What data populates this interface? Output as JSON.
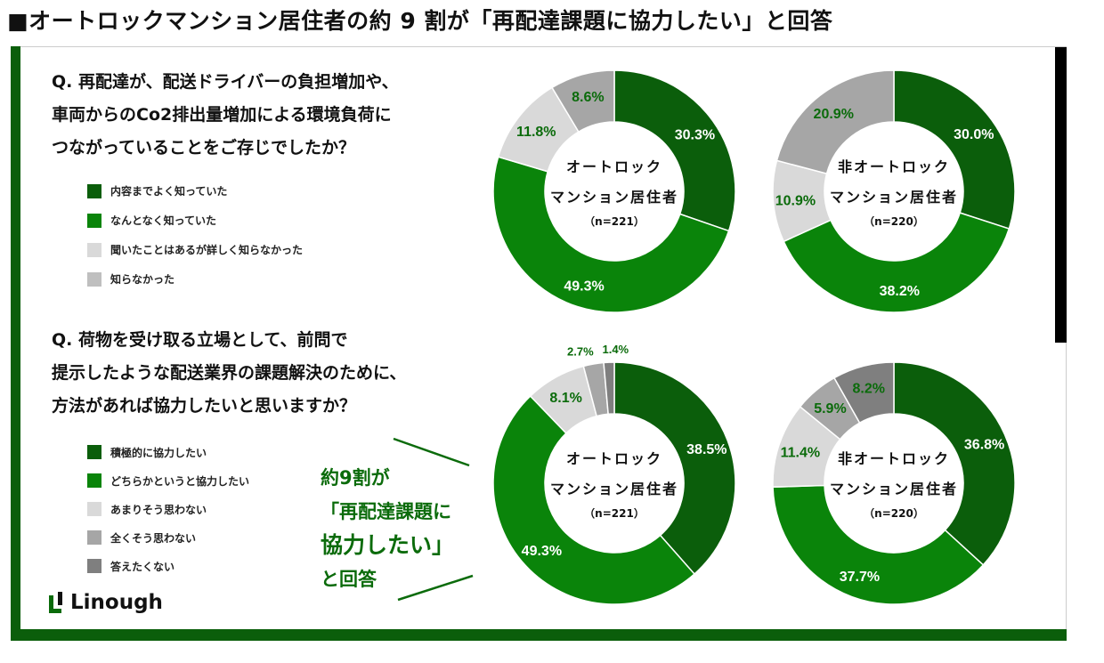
{
  "title": "■オートロックマンション居住者の約 9 割が「再配達課題に協力したい」と回答",
  "q1": {
    "lines": [
      "Q. 再配達が、配送ドライバーの負担増加や、",
      "車両からのCo2排出量増加による環境負荷に",
      "つながっていることをご存じでしたか？"
    ],
    "legend": [
      "内容までよく知っていた",
      "なんとなく知っていた",
      "聞いたことはあるが詳しく知らなかった",
      "知らなかった"
    ]
  },
  "q2": {
    "lines": [
      "Q. 荷物を受け取る立場として、前問で",
      "提示したような配送業界の課題解決のために、",
      "方法があれば協力したいと思いますか？"
    ],
    "legend": [
      "積極的に協力したい",
      "どちらかというと協力したい",
      "あまりそう思わない",
      "全くそう思わない",
      "答えたくない"
    ]
  },
  "callout": [
    "約9割が",
    "「再配達課題に",
    "協力したい」",
    "と回答"
  ],
  "logo": "Linough",
  "colors": {
    "dark_green": "#0b5e0b",
    "green": "#0a840a",
    "light_gray": "#d9d9d9",
    "gray": "#a6a6a6",
    "dark_gray": "#7f7f7f",
    "label_green": "#0b6b0b"
  },
  "chart_data": [
    {
      "type": "pie",
      "donut": true,
      "question": "q1",
      "center": [
        "オートロック",
        "マンション居住者",
        "（n=221）"
      ],
      "categories": [
        "内容までよく知っていた",
        "なんとなく知っていた",
        "聞いたことはあるが詳しく知らなかった",
        "知らなかった"
      ],
      "values": [
        30.3,
        49.3,
        11.8,
        8.6
      ],
      "labels": [
        "30.3%",
        "49.3%",
        "11.8%",
        "8.6%"
      ],
      "colors": [
        "#0b5e0b",
        "#0a840a",
        "#d9d9d9",
        "#a6a6a6"
      ]
    },
    {
      "type": "pie",
      "donut": true,
      "question": "q1",
      "center": [
        "非オートロック",
        "マンション居住者",
        "（n=220）"
      ],
      "categories": [
        "内容までよく知っていた",
        "なんとなく知っていた",
        "聞いたことはあるが詳しく知らなかった",
        "知らなかった"
      ],
      "values": [
        30.0,
        38.2,
        10.9,
        20.9
      ],
      "labels": [
        "30.0%",
        "38.2%",
        "10.9%",
        "20.9%"
      ],
      "colors": [
        "#0b5e0b",
        "#0a840a",
        "#d9d9d9",
        "#a6a6a6"
      ]
    },
    {
      "type": "pie",
      "donut": true,
      "question": "q2",
      "center": [
        "オートロック",
        "マンション居住者",
        "（n=221）"
      ],
      "categories": [
        "積極的に協力したい",
        "どちらかというと協力したい",
        "あまりそう思わない",
        "全くそう思わない",
        "答えたくない"
      ],
      "values": [
        38.5,
        49.3,
        8.1,
        2.7,
        1.4
      ],
      "labels": [
        "38.5%",
        "49.3%",
        "8.1%",
        "2.7%",
        "1.4%"
      ],
      "colors": [
        "#0b5e0b",
        "#0a840a",
        "#d9d9d9",
        "#a6a6a6",
        "#7f7f7f"
      ]
    },
    {
      "type": "pie",
      "donut": true,
      "question": "q2",
      "center": [
        "非オートロック",
        "マンション居住者",
        "（n=220）"
      ],
      "categories": [
        "積極的に協力したい",
        "どちらかというと協力したい",
        "あまりそう思わない",
        "全くそう思わない",
        "答えたくない"
      ],
      "values": [
        36.8,
        37.7,
        11.4,
        5.9,
        8.2
      ],
      "labels": [
        "36.8%",
        "37.7%",
        "11.4%",
        "5.9%",
        "8.2%"
      ],
      "colors": [
        "#0b5e0b",
        "#0a840a",
        "#d9d9d9",
        "#a6a6a6",
        "#7f7f7f"
      ]
    }
  ]
}
